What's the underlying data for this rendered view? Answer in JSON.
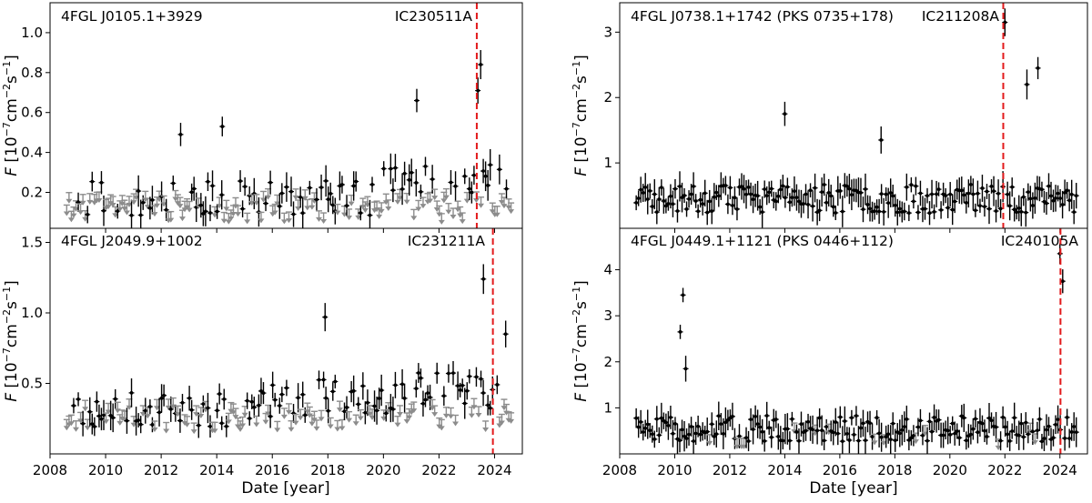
{
  "figure": {
    "xlabel": "Date [year]",
    "ylabel_html": "F [10^-7 cm^-2 s^-1]",
    "ylabel_parts": {
      "var": "F",
      "open": "[10",
      "exp1": "−7",
      "unit": "cm",
      "exp2": "−2",
      "sunit": "s",
      "exp3": "−1",
      "close": "]"
    },
    "x_ticks": [
      "2008",
      "2010",
      "2012",
      "2014",
      "2016",
      "2018",
      "2020",
      "2022",
      "2024"
    ],
    "colors": {
      "detection": "#000000",
      "upper_limit": "#8c8c8c",
      "neutrino": "#e31a1c"
    }
  },
  "chart_data": [
    {
      "type": "scatter",
      "source": "4FGL J0105.1+3929",
      "neutrino": "IC230511A",
      "neutrino_date": 2023.36,
      "xlim": [
        2008,
        2025
      ],
      "ylim": [
        0.02,
        1.15
      ],
      "y_ticks": [
        "0.2",
        "0.4",
        "0.6",
        "0.8",
        "1.0"
      ],
      "y_tick_values": [
        0.2,
        0.4,
        0.6,
        0.8,
        1.0
      ],
      "notable_points": [
        {
          "x": 2012.7,
          "y": 0.49
        },
        {
          "x": 2014.2,
          "y": 0.53
        },
        {
          "x": 2021.2,
          "y": 0.66
        },
        {
          "x": 2023.4,
          "y": 0.71
        },
        {
          "x": 2023.5,
          "y": 0.84
        }
      ]
    },
    {
      "type": "scatter",
      "source": "4FGL J0738.1+1742 (PKS 0735+178)",
      "neutrino": "IC211208A",
      "neutrino_date": 2021.94,
      "xlim": [
        2008,
        2025
      ],
      "ylim": [
        0.0,
        3.45
      ],
      "y_ticks": [
        "1",
        "2",
        "3"
      ],
      "y_tick_values": [
        1,
        2,
        3
      ],
      "notable_points": [
        {
          "x": 2014.0,
          "y": 1.75
        },
        {
          "x": 2017.5,
          "y": 1.35
        },
        {
          "x": 2022.0,
          "y": 3.15
        },
        {
          "x": 2022.8,
          "y": 2.2
        },
        {
          "x": 2023.2,
          "y": 2.45
        }
      ]
    },
    {
      "type": "scatter",
      "source": "4FGL J2049.9+1002",
      "neutrino": "IC231211A",
      "neutrino_date": 2023.94,
      "xlim": [
        2008,
        2025
      ],
      "ylim": [
        0.0,
        1.6
      ],
      "y_ticks": [
        "0.5",
        "1.0",
        "1.5"
      ],
      "y_tick_values": [
        0.5,
        1.0,
        1.5
      ],
      "notable_points": [
        {
          "x": 2017.9,
          "y": 0.97
        },
        {
          "x": 2023.6,
          "y": 1.24
        },
        {
          "x": 2024.4,
          "y": 0.85
        }
      ]
    },
    {
      "type": "scatter",
      "source": "4FGL J0449.1+1121 (PKS 0446+112)",
      "neutrino": "IC240105A",
      "neutrino_date": 2024.02,
      "xlim": [
        2008,
        2025
      ],
      "ylim": [
        0.0,
        4.9
      ],
      "y_ticks": [
        "1",
        "2",
        "3",
        "4"
      ],
      "y_tick_values": [
        1,
        2,
        3,
        4
      ],
      "notable_points": [
        {
          "x": 2010.2,
          "y": 2.65
        },
        {
          "x": 2010.3,
          "y": 3.45
        },
        {
          "x": 2010.4,
          "y": 1.85
        },
        {
          "x": 2024.0,
          "y": 4.35
        },
        {
          "x": 2024.1,
          "y": 3.75
        }
      ]
    }
  ]
}
